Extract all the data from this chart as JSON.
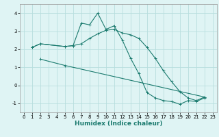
{
  "xlabel": "Humidex (Indice chaleur)",
  "bg_color": "#dff4f4",
  "line_color": "#1a7a6e",
  "grid_color": "#b8dede",
  "xlim": [
    -0.5,
    23.5
  ],
  "ylim": [
    -1.5,
    4.5
  ],
  "yticks": [
    -1,
    0,
    1,
    2,
    3,
    4
  ],
  "xticks": [
    0,
    1,
    2,
    3,
    4,
    5,
    6,
    7,
    8,
    9,
    10,
    11,
    12,
    13,
    14,
    15,
    16,
    17,
    18,
    19,
    20,
    21,
    22,
    23
  ],
  "line1_x": [
    1,
    2,
    5,
    6,
    7,
    8,
    9,
    10,
    11,
    12,
    13,
    14,
    15,
    16,
    17,
    18,
    19,
    20,
    21,
    22
  ],
  "line1_y": [
    2.1,
    2.3,
    2.15,
    2.2,
    3.45,
    3.35,
    4.0,
    3.1,
    3.3,
    2.5,
    1.5,
    0.65,
    -0.4,
    -0.7,
    -0.85,
    -0.9,
    -1.05,
    -0.85,
    -0.9,
    -0.7
  ],
  "line2_x": [
    1,
    2,
    5,
    6,
    7,
    8,
    9,
    10,
    11,
    12,
    13,
    14,
    15,
    16,
    17,
    18,
    19,
    20,
    21,
    22
  ],
  "line2_y": [
    2.1,
    2.3,
    2.15,
    2.2,
    2.3,
    2.6,
    2.85,
    3.05,
    3.1,
    2.9,
    2.8,
    2.6,
    2.1,
    1.5,
    0.8,
    0.2,
    -0.35,
    -0.7,
    -0.85,
    -0.65
  ],
  "line3_x": [
    2,
    5,
    22
  ],
  "line3_y": [
    1.45,
    1.1,
    -0.65
  ],
  "tick_fontsize": 5.0,
  "xlabel_fontsize": 6.5,
  "marker_size": 3.0,
  "lw": 0.8
}
